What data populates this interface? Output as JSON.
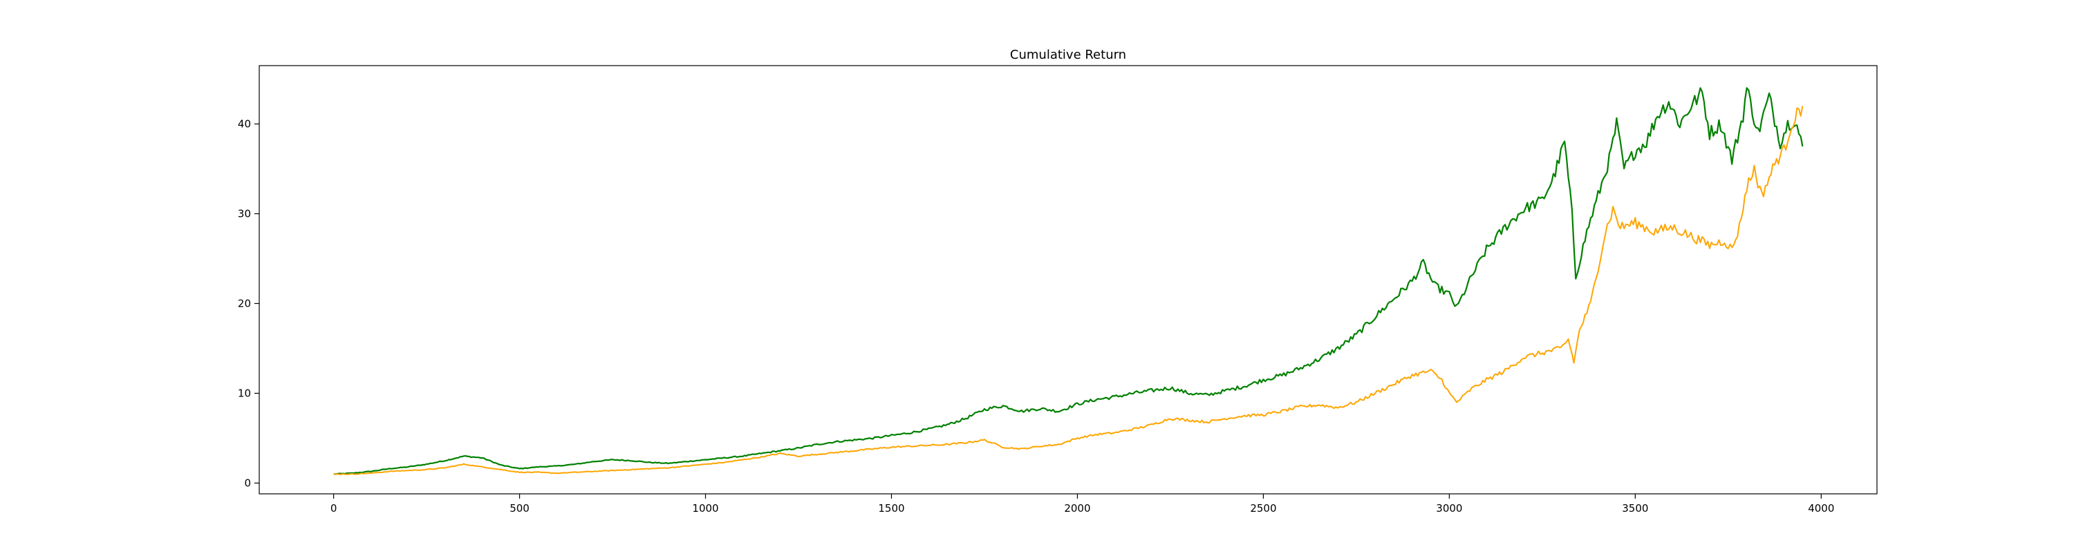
{
  "chart_data": {
    "type": "line",
    "title": "Cumulative Return",
    "xlabel": "",
    "ylabel": "",
    "xlim": [
      -200,
      4150
    ],
    "ylim": [
      -1.2,
      46.5
    ],
    "x_ticks": [
      0,
      500,
      1000,
      1500,
      2000,
      2500,
      3000,
      3500,
      4000
    ],
    "y_ticks": [
      0,
      10,
      20,
      30,
      40
    ],
    "grid": false,
    "legend": "none",
    "series": [
      {
        "color": "#008000",
        "points": [
          [
            0,
            1.0
          ],
          [
            50,
            1.1
          ],
          [
            100,
            1.3
          ],
          [
            150,
            1.6
          ],
          [
            200,
            1.8
          ],
          [
            250,
            2.1
          ],
          [
            300,
            2.5
          ],
          [
            350,
            3.0
          ],
          [
            400,
            2.8
          ],
          [
            450,
            2.0
          ],
          [
            500,
            1.6
          ],
          [
            550,
            1.8
          ],
          [
            600,
            1.9
          ],
          [
            650,
            2.1
          ],
          [
            700,
            2.4
          ],
          [
            750,
            2.6
          ],
          [
            800,
            2.5
          ],
          [
            850,
            2.3
          ],
          [
            900,
            2.2
          ],
          [
            950,
            2.4
          ],
          [
            1000,
            2.6
          ],
          [
            1050,
            2.8
          ],
          [
            1100,
            3.0
          ],
          [
            1150,
            3.3
          ],
          [
            1200,
            3.6
          ],
          [
            1250,
            3.9
          ],
          [
            1300,
            4.3
          ],
          [
            1350,
            4.6
          ],
          [
            1400,
            4.8
          ],
          [
            1450,
            5.0
          ],
          [
            1500,
            5.3
          ],
          [
            1550,
            5.6
          ],
          [
            1600,
            6.0
          ],
          [
            1650,
            6.5
          ],
          [
            1700,
            7.2
          ],
          [
            1750,
            8.2
          ],
          [
            1800,
            8.6
          ],
          [
            1850,
            8.0
          ],
          [
            1900,
            8.3
          ],
          [
            1950,
            8.0
          ],
          [
            2000,
            8.8
          ],
          [
            2050,
            9.3
          ],
          [
            2100,
            9.6
          ],
          [
            2150,
            10.0
          ],
          [
            2200,
            10.3
          ],
          [
            2250,
            10.6
          ],
          [
            2300,
            10.0
          ],
          [
            2350,
            9.8
          ],
          [
            2400,
            10.3
          ],
          [
            2450,
            10.8
          ],
          [
            2500,
            11.5
          ],
          [
            2550,
            12.0
          ],
          [
            2600,
            12.8
          ],
          [
            2650,
            13.8
          ],
          [
            2700,
            15.0
          ],
          [
            2750,
            16.5
          ],
          [
            2800,
            18.5
          ],
          [
            2850,
            20.5
          ],
          [
            2900,
            22.5
          ],
          [
            2930,
            24.5
          ],
          [
            2960,
            22.0
          ],
          [
            3000,
            21.0
          ],
          [
            3020,
            19.5
          ],
          [
            3060,
            23.0
          ],
          [
            3100,
            26.0
          ],
          [
            3150,
            28.5
          ],
          [
            3200,
            30.5
          ],
          [
            3250,
            31.5
          ],
          [
            3280,
            34.0
          ],
          [
            3310,
            38.0
          ],
          [
            3330,
            30.0
          ],
          [
            3340,
            23.0
          ],
          [
            3370,
            28.0
          ],
          [
            3400,
            32.0
          ],
          [
            3430,
            36.0
          ],
          [
            3450,
            40.0
          ],
          [
            3470,
            35.0
          ],
          [
            3500,
            37.0
          ],
          [
            3530,
            38.0
          ],
          [
            3560,
            41.0
          ],
          [
            3590,
            42.5
          ],
          [
            3620,
            40.0
          ],
          [
            3650,
            42.0
          ],
          [
            3680,
            43.5
          ],
          [
            3700,
            39.0
          ],
          [
            3730,
            40.0
          ],
          [
            3760,
            36.0
          ],
          [
            3790,
            41.0
          ],
          [
            3800,
            44.0
          ],
          [
            3830,
            39.0
          ],
          [
            3860,
            43.0
          ],
          [
            3890,
            38.0
          ],
          [
            3910,
            40.0
          ],
          [
            3930,
            40.5
          ],
          [
            3950,
            37.5
          ]
        ]
      },
      {
        "color": "#FFA500",
        "points": [
          [
            0,
            1.0
          ],
          [
            50,
            1.0
          ],
          [
            100,
            1.1
          ],
          [
            150,
            1.3
          ],
          [
            200,
            1.4
          ],
          [
            250,
            1.5
          ],
          [
            300,
            1.7
          ],
          [
            350,
            2.1
          ],
          [
            400,
            1.8
          ],
          [
            450,
            1.5
          ],
          [
            500,
            1.2
          ],
          [
            550,
            1.2
          ],
          [
            600,
            1.1
          ],
          [
            650,
            1.2
          ],
          [
            700,
            1.3
          ],
          [
            750,
            1.4
          ],
          [
            800,
            1.5
          ],
          [
            850,
            1.6
          ],
          [
            900,
            1.7
          ],
          [
            950,
            1.9
          ],
          [
            1000,
            2.1
          ],
          [
            1050,
            2.3
          ],
          [
            1100,
            2.6
          ],
          [
            1150,
            2.9
          ],
          [
            1200,
            3.3
          ],
          [
            1250,
            3.0
          ],
          [
            1300,
            3.2
          ],
          [
            1350,
            3.4
          ],
          [
            1400,
            3.6
          ],
          [
            1450,
            3.8
          ],
          [
            1500,
            4.0
          ],
          [
            1550,
            4.1
          ],
          [
            1600,
            4.2
          ],
          [
            1650,
            4.3
          ],
          [
            1700,
            4.5
          ],
          [
            1750,
            4.8
          ],
          [
            1800,
            4.0
          ],
          [
            1850,
            3.8
          ],
          [
            1900,
            4.1
          ],
          [
            1950,
            4.3
          ],
          [
            2000,
            5.0
          ],
          [
            2050,
            5.4
          ],
          [
            2100,
            5.6
          ],
          [
            2150,
            6.0
          ],
          [
            2200,
            6.5
          ],
          [
            2250,
            7.2
          ],
          [
            2300,
            7.0
          ],
          [
            2350,
            6.8
          ],
          [
            2400,
            7.2
          ],
          [
            2450,
            7.5
          ],
          [
            2500,
            7.6
          ],
          [
            2550,
            8.0
          ],
          [
            2600,
            8.5
          ],
          [
            2650,
            8.7
          ],
          [
            2700,
            8.4
          ],
          [
            2750,
            9.0
          ],
          [
            2800,
            10.0
          ],
          [
            2850,
            11.0
          ],
          [
            2900,
            12.0
          ],
          [
            2950,
            12.5
          ],
          [
            2980,
            11.5
          ],
          [
            3000,
            10.0
          ],
          [
            3020,
            9.0
          ],
          [
            3060,
            10.5
          ],
          [
            3100,
            11.5
          ],
          [
            3150,
            12.5
          ],
          [
            3200,
            14.0
          ],
          [
            3250,
            14.5
          ],
          [
            3300,
            15.0
          ],
          [
            3320,
            16.0
          ],
          [
            3335,
            13.5
          ],
          [
            3350,
            17.0
          ],
          [
            3380,
            20.0
          ],
          [
            3400,
            24.0
          ],
          [
            3420,
            28.0
          ],
          [
            3440,
            30.5
          ],
          [
            3460,
            28.5
          ],
          [
            3500,
            29.0
          ],
          [
            3550,
            28.0
          ],
          [
            3600,
            28.5
          ],
          [
            3650,
            27.5
          ],
          [
            3700,
            26.5
          ],
          [
            3740,
            27.0
          ],
          [
            3760,
            26.0
          ],
          [
            3780,
            28.5
          ],
          [
            3800,
            33.0
          ],
          [
            3820,
            35.0
          ],
          [
            3840,
            32.0
          ],
          [
            3860,
            34.0
          ],
          [
            3880,
            36.0
          ],
          [
            3900,
            37.0
          ],
          [
            3920,
            40.0
          ],
          [
            3935,
            41.0
          ],
          [
            3950,
            42.0
          ]
        ]
      }
    ]
  }
}
